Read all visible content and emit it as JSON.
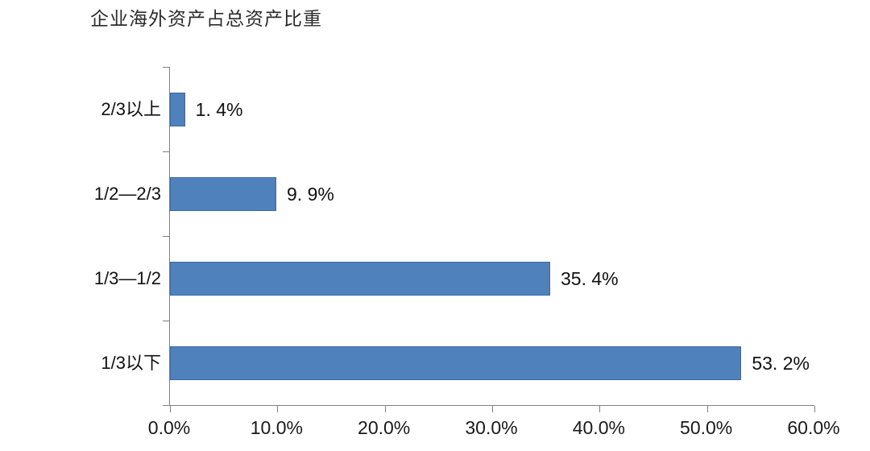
{
  "page": {
    "background_color": "#ffffff"
  },
  "chart_data": {
    "type": "bar",
    "orientation": "horizontal",
    "title": "企业海外资产占总资产比重",
    "categories": [
      "2/3以上",
      "1/2—2/3",
      "1/3—1/2",
      "1/3以下"
    ],
    "values": [
      1.4,
      9.9,
      35.4,
      53.2
    ],
    "data_labels": [
      "1. 4%",
      "9. 9%",
      "35. 4%",
      "53. 2%"
    ],
    "x_tick_values": [
      0,
      10,
      20,
      30,
      40,
      50,
      60
    ],
    "x_tick_labels": [
      "0.0%",
      "10.0%",
      "20.0%",
      "30.0%",
      "40.0%",
      "50.0%",
      "60.0%"
    ],
    "xlim": [
      0,
      60
    ],
    "grid": false,
    "legend": false,
    "bar_color": "#4F81BD",
    "bar_border_color": "#3B6AA0",
    "axis_color": "#808080",
    "text_color": "#111111"
  }
}
